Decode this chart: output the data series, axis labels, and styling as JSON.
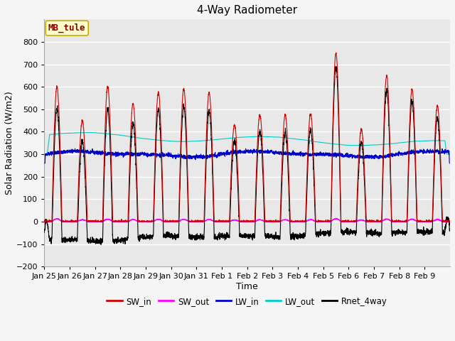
{
  "title": "4-Way Radiometer",
  "xlabel": "Time",
  "ylabel": "Solar Radiation (W/m2)",
  "ylim": [
    -200,
    900
  ],
  "yticks": [
    -200,
    -100,
    0,
    100,
    200,
    300,
    400,
    500,
    600,
    700,
    800
  ],
  "colors": {
    "SW_in": "#cc0000",
    "SW_out": "#ff00ff",
    "LW_in": "#0000cc",
    "LW_out": "#00cccc",
    "Rnet_4way": "#000000"
  },
  "annotation_text": "MB_tule",
  "annotation_color": "#8b0000",
  "annotation_bg": "#ffffcc",
  "annotation_border": "#ccaa00",
  "plot_bg": "#e8e8e8",
  "fig_bg": "#f5f5f5",
  "grid_color": "#ffffff",
  "title_fontsize": 11,
  "label_fontsize": 9,
  "tick_fontsize": 8,
  "x_tick_labels": [
    "Jan 25",
    "Jan 26",
    "Jan 27",
    "Jan 28",
    "Jan 29",
    "Jan 30",
    "Jan 31",
    "Feb 1",
    "Feb 2",
    "Feb 3",
    "Feb 4",
    "Feb 5",
    "Feb 6",
    "Feb 7",
    "Feb 8",
    "Feb 9"
  ],
  "day_peaks_SW_in": [
    600,
    450,
    600,
    525,
    575,
    590,
    575,
    430,
    475,
    475,
    480,
    750,
    410,
    650,
    590,
    515
  ],
  "day_peaks_SW_out": [
    12,
    8,
    10,
    9,
    10,
    10,
    9,
    7,
    8,
    8,
    8,
    13,
    7,
    11,
    10,
    9
  ],
  "LW_in_base": 295,
  "LW_out_base": 370,
  "night_rnet": -60,
  "n_points": 3840
}
